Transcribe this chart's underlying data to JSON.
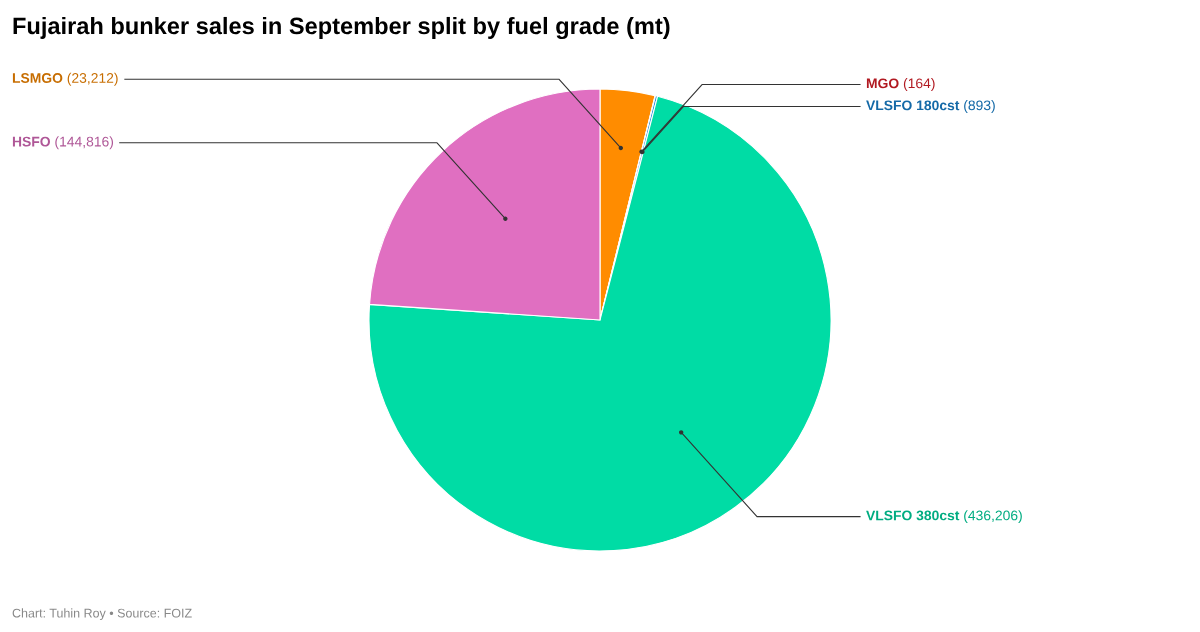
{
  "chart_data": {
    "type": "pie",
    "title": "Fujairah bunker sales in September split by fuel grade (mt)",
    "categories": [
      "LSMGO",
      "MGO",
      "VLSFO 180cst",
      "VLSFO 380cst",
      "HSFO"
    ],
    "values": [
      23212,
      164,
      893,
      436206,
      144816
    ],
    "value_labels": [
      "(23,212)",
      "(164)",
      "(893)",
      "(436,206)",
      "(144,816)"
    ],
    "colors": [
      "#ff8c00",
      "#e3202a",
      "#1a86d6",
      "#00dca5",
      "#e06fc1"
    ],
    "annotations": [
      "Chart: Tuhin Roy • Source: FOIZ"
    ]
  }
}
